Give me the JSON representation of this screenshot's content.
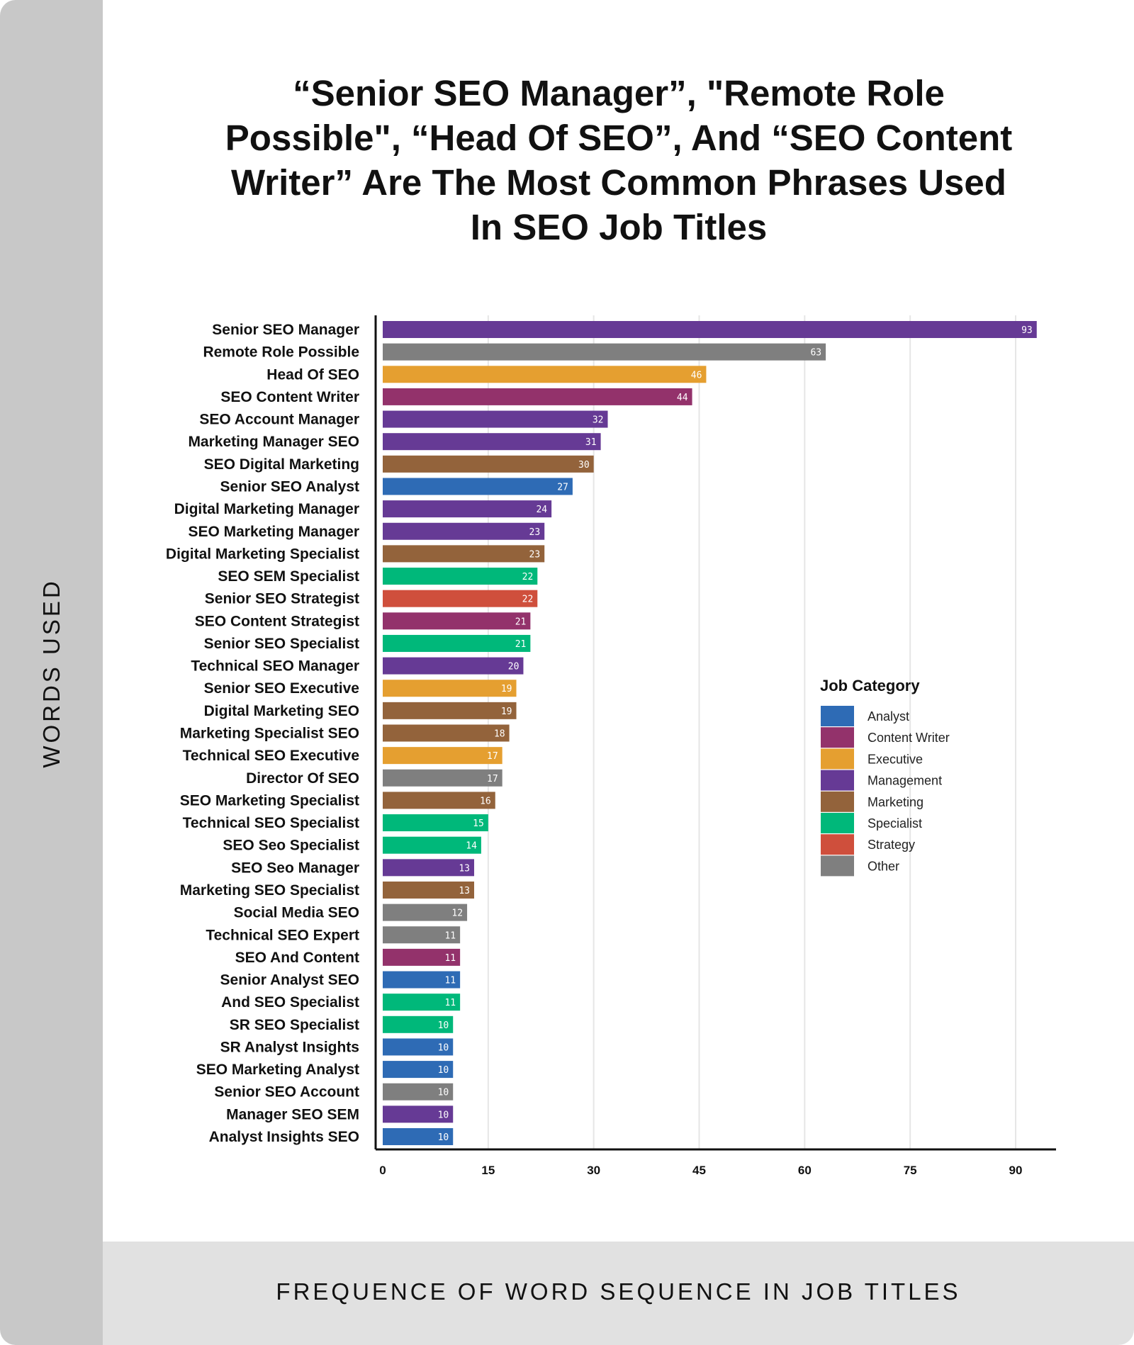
{
  "chart_data": {
    "type": "bar",
    "orientation": "horizontal",
    "title": "“Senior SEO Manager”, \"Remote Role Possible\", “Head Of SEO”, And “SEO Content Writer” Are The Most Common Phrases Used In SEO Job Titles",
    "xlabel": "FREQUENCE OF WORD SEQUENCE IN JOB TITLES",
    "ylabel": "WORDS USED",
    "xlim": [
      0,
      95
    ],
    "xticks": [
      0,
      15,
      30,
      45,
      60,
      75,
      90
    ],
    "grid": "vertical",
    "legend_title": "Job Category",
    "legend_position": "right",
    "legend": [
      {
        "name": "Analyst",
        "color": "#2e6bb5"
      },
      {
        "name": "Content Writer",
        "color": "#93326b"
      },
      {
        "name": "Executive",
        "color": "#e59f30"
      },
      {
        "name": "Management",
        "color": "#663a95"
      },
      {
        "name": "Marketing",
        "color": "#93633b"
      },
      {
        "name": "Specialist",
        "color": "#00b87a"
      },
      {
        "name": "Strategy",
        "color": "#cf4f3c"
      },
      {
        "name": "Other",
        "color": "#7f7f7f"
      }
    ],
    "bars": [
      {
        "label": "Senior SEO Manager",
        "value": 93,
        "category": "Management"
      },
      {
        "label": "Remote Role Possible",
        "value": 63,
        "category": "Other"
      },
      {
        "label": "Head Of SEO",
        "value": 46,
        "category": "Executive"
      },
      {
        "label": "SEO Content Writer",
        "value": 44,
        "category": "Content Writer"
      },
      {
        "label": "SEO Account Manager",
        "value": 32,
        "category": "Management"
      },
      {
        "label": "Marketing Manager SEO",
        "value": 31,
        "category": "Management"
      },
      {
        "label": "SEO Digital Marketing",
        "value": 30,
        "category": "Marketing"
      },
      {
        "label": "Senior SEO Analyst",
        "value": 27,
        "category": "Analyst"
      },
      {
        "label": "Digital Marketing Manager",
        "value": 24,
        "category": "Management"
      },
      {
        "label": "SEO Marketing Manager",
        "value": 23,
        "category": "Management"
      },
      {
        "label": "Digital Marketing Specialist",
        "value": 23,
        "category": "Marketing"
      },
      {
        "label": "SEO SEM Specialist",
        "value": 22,
        "category": "Specialist"
      },
      {
        "label": "Senior SEO Strategist",
        "value": 22,
        "category": "Strategy"
      },
      {
        "label": "SEO Content Strategist",
        "value": 21,
        "category": "Content Writer"
      },
      {
        "label": "Senior SEO Specialist",
        "value": 21,
        "category": "Specialist"
      },
      {
        "label": "Technical SEO Manager",
        "value": 20,
        "category": "Management"
      },
      {
        "label": "Senior SEO Executive",
        "value": 19,
        "category": "Executive"
      },
      {
        "label": "Digital Marketing SEO",
        "value": 19,
        "category": "Marketing"
      },
      {
        "label": "Marketing Specialist SEO",
        "value": 18,
        "category": "Marketing"
      },
      {
        "label": "Technical SEO Executive",
        "value": 17,
        "category": "Executive"
      },
      {
        "label": "Director Of SEO",
        "value": 17,
        "category": "Other"
      },
      {
        "label": "SEO Marketing Specialist",
        "value": 16,
        "category": "Marketing"
      },
      {
        "label": "Technical SEO Specialist",
        "value": 15,
        "category": "Specialist"
      },
      {
        "label": "SEO Seo Specialist",
        "value": 14,
        "category": "Specialist"
      },
      {
        "label": "SEO Seo Manager",
        "value": 13,
        "category": "Management"
      },
      {
        "label": "Marketing SEO Specialist",
        "value": 13,
        "category": "Marketing"
      },
      {
        "label": "Social Media SEO",
        "value": 12,
        "category": "Other"
      },
      {
        "label": "Technical SEO Expert",
        "value": 11,
        "category": "Other"
      },
      {
        "label": "SEO And Content",
        "value": 11,
        "category": "Content Writer"
      },
      {
        "label": "Senior Analyst SEO",
        "value": 11,
        "category": "Analyst"
      },
      {
        "label": "And SEO Specialist",
        "value": 11,
        "category": "Specialist"
      },
      {
        "label": "SR SEO Specialist",
        "value": 10,
        "category": "Specialist"
      },
      {
        "label": "SR Analyst Insights",
        "value": 10,
        "category": "Analyst"
      },
      {
        "label": "SEO Marketing Analyst",
        "value": 10,
        "category": "Analyst"
      },
      {
        "label": "Senior SEO Account",
        "value": 10,
        "category": "Other"
      },
      {
        "label": "Manager SEO SEM",
        "value": 10,
        "category": "Management"
      },
      {
        "label": "Analyst Insights SEO",
        "value": 10,
        "category": "Analyst"
      }
    ]
  }
}
